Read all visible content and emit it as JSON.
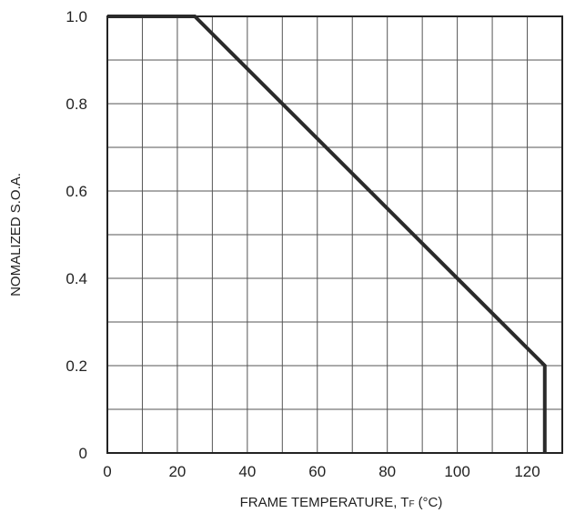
{
  "chart_data": {
    "type": "line",
    "title": "",
    "xlabel": "FRAME TEMPERATURE, T",
    "xlabel_subscript": "F",
    "xlabel_unit": "(°C)",
    "ylabel": "NOMALIZED S.O.A.",
    "xlim": [
      0,
      130
    ],
    "ylim": [
      0,
      1.0
    ],
    "x_ticks": [
      0,
      20,
      40,
      60,
      80,
      100,
      120
    ],
    "x_tick_labels": [
      "0",
      "20",
      "40",
      "60",
      "80",
      "100",
      "120"
    ],
    "y_ticks": [
      0,
      0.2,
      0.4,
      0.6,
      0.8,
      1.0
    ],
    "y_tick_labels": [
      "0",
      "0.2",
      "0.4",
      "0.6",
      "0.8",
      "1.0"
    ],
    "grid": true,
    "series": [
      {
        "x": [
          0,
          25,
          125,
          125
        ],
        "y": [
          1.0,
          1.0,
          0.2,
          0
        ],
        "color": "#2a2a2a"
      }
    ]
  }
}
